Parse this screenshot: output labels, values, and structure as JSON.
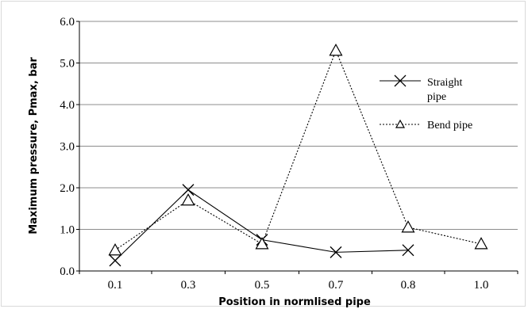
{
  "chart_data": {
    "type": "line",
    "xlabel": "Position in normlised pipe",
    "ylabel": "Maximum pressure, Pmax, bar",
    "categories": [
      "0.1",
      "0.3",
      "0.5",
      "0.7",
      "0.8",
      "1.0"
    ],
    "ylim": [
      0.0,
      6.0
    ],
    "yticks": [
      "0.0",
      "1.0",
      "2.0",
      "3.0",
      "4.0",
      "5.0",
      "6.0"
    ],
    "grid": "horizontal",
    "legend_position": "right",
    "series": [
      {
        "name": "Straight pipe",
        "marker": "x",
        "line_style": "solid",
        "color": "#000000",
        "values": [
          0.25,
          1.95,
          0.75,
          0.45,
          0.5,
          null
        ]
      },
      {
        "name": "Bend pipe",
        "marker": "triangle",
        "line_style": "dotted",
        "color": "#000000",
        "values": [
          0.5,
          1.7,
          0.65,
          5.3,
          1.05,
          0.65
        ]
      }
    ]
  }
}
